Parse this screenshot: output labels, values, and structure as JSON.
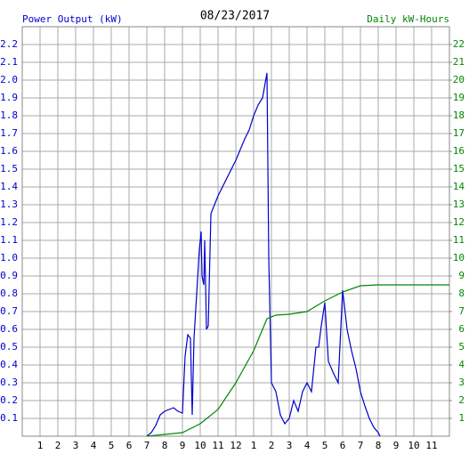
{
  "chart_data": {
    "type": "line",
    "title": "08/23/2017",
    "ylabel": "Power Output (kW)",
    "y2label": "Daily kW-Hours",
    "xlim": [
      0,
      24
    ],
    "xticks": [
      1,
      2,
      3,
      4,
      5,
      6,
      7,
      8,
      9,
      10,
      11,
      12,
      {
        "value": 13,
        "label": "1"
      },
      {
        "value": 14,
        "label": "2"
      },
      {
        "value": 15,
        "label": "3"
      },
      {
        "value": 16,
        "label": "4"
      },
      {
        "value": 17,
        "label": "5"
      },
      {
        "value": 18,
        "label": "6"
      },
      {
        "value": 19,
        "label": "7"
      },
      {
        "value": 20,
        "label": "8"
      },
      {
        "value": 21,
        "label": "9"
      },
      {
        "value": 22,
        "label": "10"
      },
      {
        "value": 23,
        "label": "11"
      }
    ],
    "ylim": [
      0,
      2.3
    ],
    "yticks": [
      0.1,
      0.2,
      0.3,
      0.4,
      0.5,
      0.6,
      0.7,
      0.8,
      0.9,
      {
        "value": 1,
        "label": "1.0"
      },
      1.1,
      1.2,
      1.3,
      1.4,
      1.5,
      1.6,
      1.7,
      1.8,
      1.9,
      {
        "value": 2,
        "label": "2.0"
      },
      2.1,
      2.2
    ],
    "y2lim": [
      0,
      23
    ],
    "y2ticks": [
      1,
      2,
      3,
      4,
      5,
      6,
      7,
      8,
      9,
      10,
      11,
      12,
      13,
      14,
      15,
      16,
      17,
      18,
      19,
      20,
      21,
      22
    ],
    "grid": true,
    "series": [
      {
        "color": "#0000cc",
        "x": [
          7.0,
          7.25,
          7.5,
          7.75,
          8.0,
          8.25,
          8.5,
          8.75,
          9.0,
          9.15,
          9.3,
          9.45,
          9.55,
          9.65,
          9.8,
          9.95,
          10.05,
          10.1,
          10.2,
          10.25,
          10.35,
          10.45,
          10.6,
          11.0,
          12.0,
          12.5,
          12.75,
          13.0,
          13.25,
          13.5,
          13.75,
          13.85,
          14.0,
          14.25,
          14.5,
          14.75,
          15.0,
          15.25,
          15.5,
          15.75,
          16.0,
          16.25,
          16.5,
          16.65,
          16.8,
          17.0,
          17.2,
          17.5,
          17.75,
          18.0,
          18.25,
          18.5,
          18.75,
          19.0,
          19.25,
          19.5,
          19.75,
          20.0,
          20.1
        ],
        "values": [
          0.0,
          0.02,
          0.06,
          0.12,
          0.14,
          0.15,
          0.16,
          0.14,
          0.13,
          0.45,
          0.57,
          0.55,
          0.12,
          0.55,
          0.8,
          1.05,
          1.15,
          0.9,
          0.85,
          1.1,
          0.6,
          0.62,
          1.25,
          1.35,
          1.55,
          1.67,
          1.72,
          1.8,
          1.86,
          1.9,
          2.04,
          1.0,
          0.3,
          0.25,
          0.12,
          0.07,
          0.1,
          0.2,
          0.14,
          0.25,
          0.3,
          0.25,
          0.5,
          0.5,
          0.62,
          0.75,
          0.42,
          0.35,
          0.3,
          0.82,
          0.6,
          0.48,
          0.38,
          0.25,
          0.17,
          0.1,
          0.05,
          0.02,
          0.0
        ]
      },
      {
        "color": "#008800",
        "axis": "y2",
        "x": [
          7.0,
          8.0,
          9.0,
          10.0,
          11.0,
          12.0,
          13.0,
          13.75,
          14.25,
          15.0,
          16.0,
          17.0,
          18.0,
          19.0,
          20.0,
          24.0
        ],
        "values": [
          0,
          0.1,
          0.2,
          0.7,
          1.5,
          3.0,
          4.8,
          6.6,
          6.8,
          6.85,
          7.0,
          7.6,
          8.1,
          8.45,
          8.5,
          8.5
        ]
      }
    ]
  }
}
